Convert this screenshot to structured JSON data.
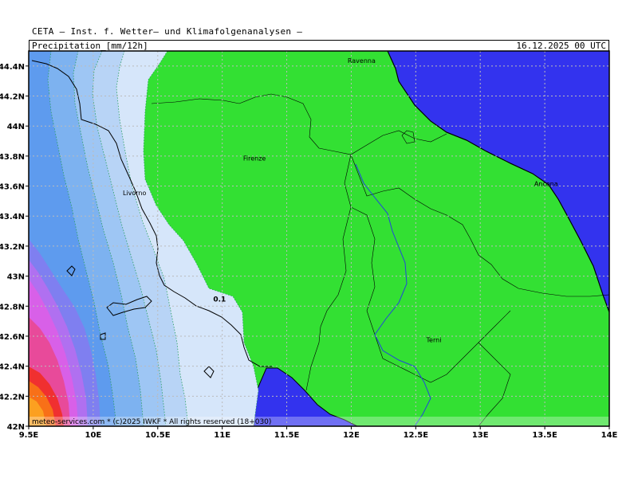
{
  "header": {
    "institute": "CETA — Inst. f. Wetter— und Klimafolgenanalysen —",
    "product": "Precipitation_[mm/12h]",
    "valid_time": "16.12.2025 00 UTC"
  },
  "axes": {
    "x_ticks": [
      {
        "value": 9.5,
        "label": "9.5E"
      },
      {
        "value": 10,
        "label": "10E"
      },
      {
        "value": 10.5,
        "label": "10.5E"
      },
      {
        "value": 11,
        "label": "11E"
      },
      {
        "value": 11.5,
        "label": "11.5E"
      },
      {
        "value": 12,
        "label": "12E"
      },
      {
        "value": 12.5,
        "label": "12.5E"
      },
      {
        "value": 13,
        "label": "13E"
      },
      {
        "value": 13.5,
        "label": "13.5E"
      },
      {
        "value": 14,
        "label": "14E"
      }
    ],
    "y_ticks": [
      {
        "value": 42,
        "label": "42N"
      },
      {
        "value": 42.2,
        "label": "42.2N"
      },
      {
        "value": 42.4,
        "label": "42.4N"
      },
      {
        "value": 42.6,
        "label": "42.6N"
      },
      {
        "value": 42.8,
        "label": "42.8N"
      },
      {
        "value": 43,
        "label": "43N"
      },
      {
        "value": 43.2,
        "label": "43.2N"
      },
      {
        "value": 43.4,
        "label": "43.4N"
      },
      {
        "value": 43.6,
        "label": "43.6N"
      },
      {
        "value": 43.8,
        "label": "43.8N"
      },
      {
        "value": 44,
        "label": "44N"
      },
      {
        "value": 44.2,
        "label": "44.2N"
      },
      {
        "value": 44.4,
        "label": "44.4N"
      }
    ],
    "lon_range": [
      9.5,
      14
    ],
    "lat_range": [
      42,
      44.5
    ],
    "grid": true
  },
  "cities": [
    {
      "name": "Ravenna",
      "lon": 12.08,
      "lat": 44.42
    },
    {
      "name": "Firenze",
      "lon": 11.25,
      "lat": 43.77
    },
    {
      "name": "Livorno",
      "lon": 10.32,
      "lat": 43.54
    },
    {
      "name": "Ancona",
      "lon": 13.51,
      "lat": 43.6
    },
    {
      "name": "Terni",
      "lon": 12.64,
      "lat": 42.56
    }
  ],
  "contour_label": {
    "text": "0.1",
    "lon": 10.93,
    "lat": 42.83
  },
  "colors": {
    "no_precip_land": "#33e033",
    "sea_dry": "#3333ee",
    "level_01": "#d6e6fa",
    "level_02": "#b8d4f6",
    "level_03": "#9ec6f4",
    "level_04": "#7db2f0",
    "level_05": "#5e9bee",
    "level_06": "#7f7ff0",
    "level_07": "#b070f0",
    "level_08": "#d860e8",
    "level_09": "#e84a9a",
    "level_10": "#f03030",
    "level_11": "#f87018",
    "level_12": "#fca020"
  },
  "footer": "meteo-services.com * (c)2025 IWKF * All rights reserved (18+030)"
}
